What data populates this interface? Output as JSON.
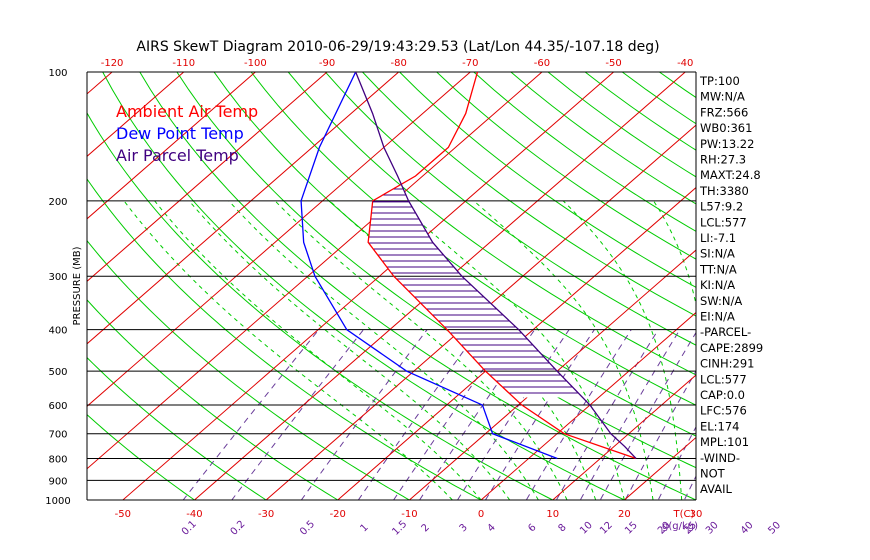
{
  "chart_data": {
    "type": "skew-t",
    "title": "AIRS SkewT Diagram 2010-06-29/19:43:29.53 (Lat/Lon 44.35/-107.18 deg)",
    "ylabel": "PRESSURE (MB)",
    "xlabel": "T(C)",
    "mixing_ratio_label": "g(g/kg)",
    "log_pressure_axis": true,
    "ylim": [
      1000,
      100
    ],
    "bottom_temp_range": [
      -55,
      30
    ],
    "pressure_ticks": [
      100,
      200,
      300,
      400,
      500,
      600,
      700,
      800,
      900,
      1000
    ],
    "top_temp_ticks": [
      -120,
      -110,
      -100,
      -90,
      -80,
      -70,
      -60,
      -50,
      -40
    ],
    "bottom_temp_ticks": [
      -50,
      -40,
      -30,
      -20,
      -10,
      0,
      10,
      20,
      30
    ],
    "mixing_ratio_ticks": [
      "0.1",
      "0.2",
      "0.5",
      "1",
      "1.5",
      "2",
      "3",
      "4",
      "6",
      "8",
      "10",
      "12",
      "15",
      "20",
      "25",
      "30",
      "40",
      "50"
    ],
    "legend": [
      {
        "name": "Ambient Air Temp",
        "color": "#ff0000"
      },
      {
        "name": "Dew Point Temp",
        "color": "#0000ff"
      },
      {
        "name": "Air Parcel Temp",
        "color": "#400080"
      }
    ],
    "series": [
      {
        "name": "Ambient Air Temp",
        "color": "#ff0000",
        "points": [
          {
            "p": 800,
            "t": 15
          },
          {
            "p": 700,
            "t": 1
          },
          {
            "p": 600,
            "t": -9.5
          },
          {
            "p": 500,
            "t": -20
          },
          {
            "p": 400,
            "t": -32
          },
          {
            "p": 300,
            "t": -48
          },
          {
            "p": 250,
            "t": -57
          },
          {
            "p": 200,
            "t": -63
          },
          {
            "p": 175,
            "t": -61
          },
          {
            "p": 150,
            "t": -61
          },
          {
            "p": 125,
            "t": -64
          },
          {
            "p": 100,
            "t": -69
          }
        ]
      },
      {
        "name": "Dew Point Temp",
        "color": "#0000ff",
        "points": [
          {
            "p": 800,
            "t": 4
          },
          {
            "p": 700,
            "t": -9
          },
          {
            "p": 600,
            "t": -15
          },
          {
            "p": 500,
            "t": -31
          },
          {
            "p": 400,
            "t": -46
          },
          {
            "p": 300,
            "t": -59
          },
          {
            "p": 250,
            "t": -66
          },
          {
            "p": 200,
            "t": -73
          },
          {
            "p": 150,
            "t": -79
          },
          {
            "p": 100,
            "t": -86
          }
        ]
      },
      {
        "name": "Air Parcel Temp",
        "color": "#400080",
        "points": [
          {
            "p": 800,
            "t": 15
          },
          {
            "p": 750,
            "t": 11.5
          },
          {
            "p": 700,
            "t": 7.5
          },
          {
            "p": 600,
            "t": 0
          },
          {
            "p": 500,
            "t": -10
          },
          {
            "p": 400,
            "t": -22
          },
          {
            "p": 300,
            "t": -38.5
          },
          {
            "p": 250,
            "t": -48
          },
          {
            "p": 200,
            "t": -58
          },
          {
            "p": 175,
            "t": -63.5
          },
          {
            "p": 150,
            "t": -70
          },
          {
            "p": 125,
            "t": -77
          },
          {
            "p": 100,
            "t": -86
          }
        ]
      }
    ],
    "indices": [
      "TP:100",
      "MW:N/A",
      "FRZ:566",
      "WB0:361",
      "PW:13.22",
      "RH:27.3",
      "MAXT:24.8",
      "TH:3380",
      "L57:9.2",
      "LCL:577",
      "LI:-7.1",
      "SI:N/A",
      "TT:N/A",
      "KI:N/A",
      "SW:N/A",
      "EI:N/A",
      "-PARCEL-",
      "CAPE:2899",
      "CINH:291",
      "LCL:577",
      "CAP:0.0",
      "LFC:576",
      "EL:174",
      "MPL:101",
      "-WIND-",
      "NOT",
      "AVAIL"
    ]
  }
}
